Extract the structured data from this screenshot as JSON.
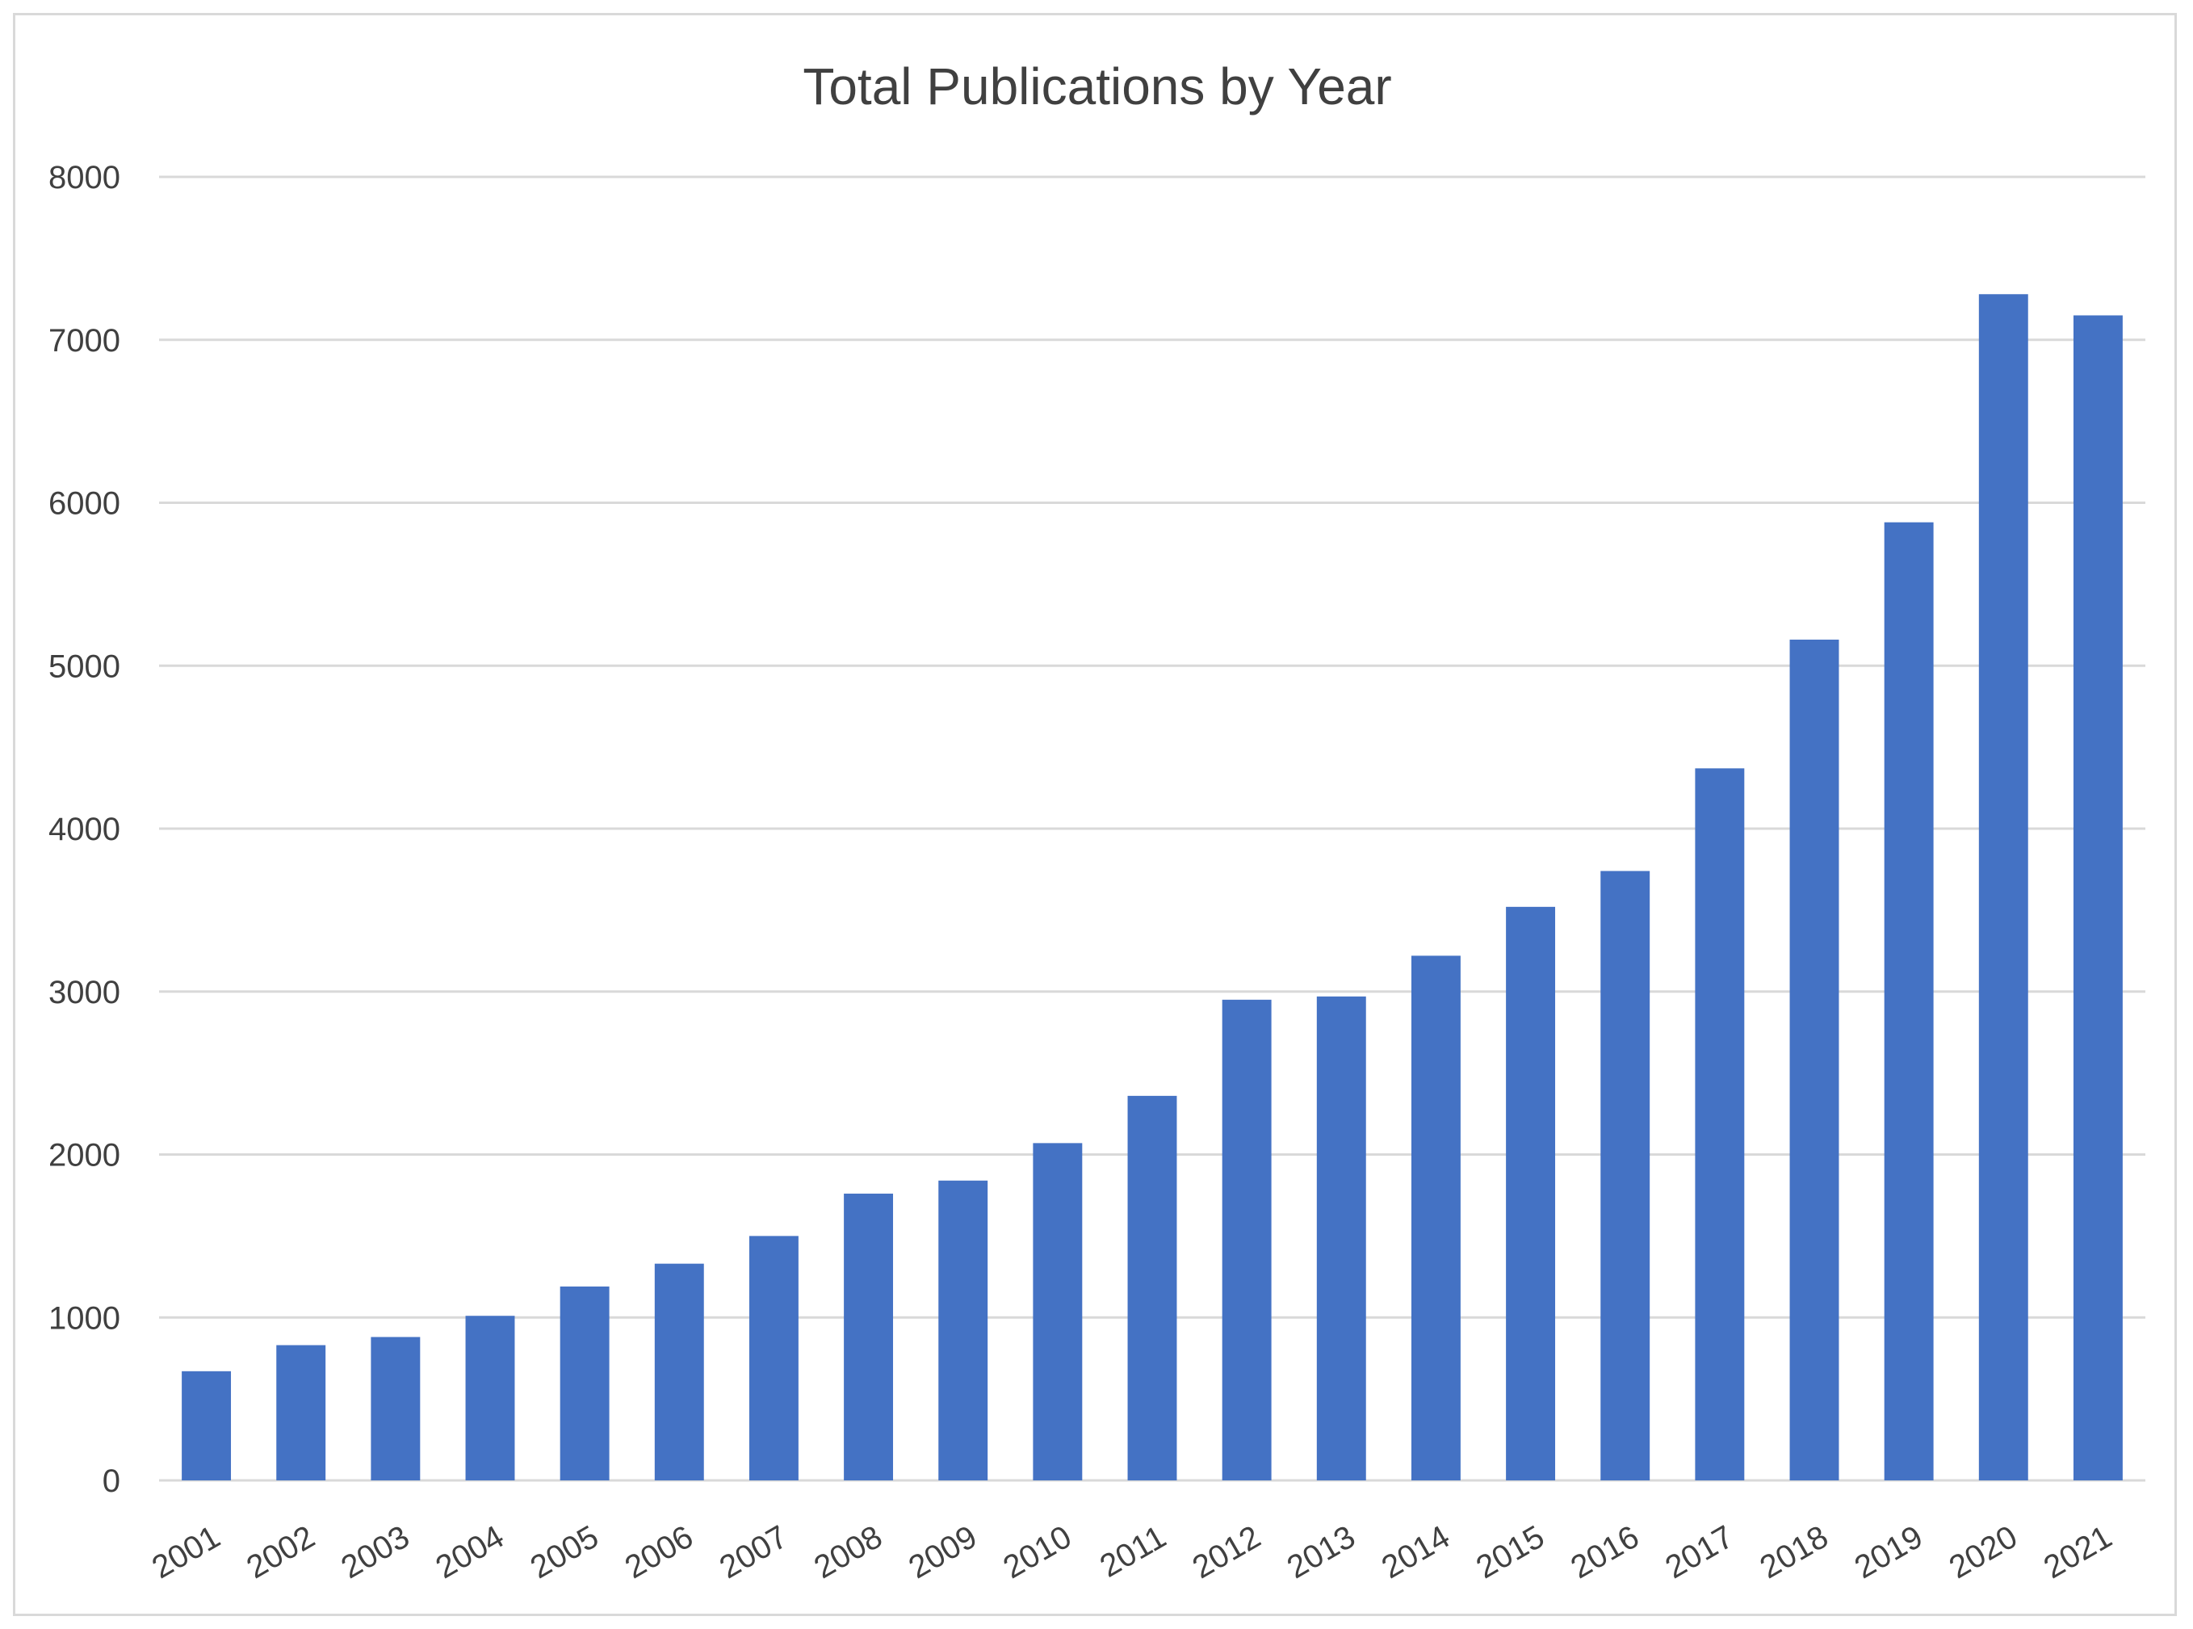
{
  "chart_data": {
    "type": "bar",
    "title": "Total Publications by Year",
    "xlabel": "",
    "ylabel": "",
    "categories": [
      "2001",
      "2002",
      "2003",
      "2004",
      "2005",
      "2006",
      "2007",
      "2008",
      "2009",
      "2010",
      "2011",
      "2012",
      "2013",
      "2014",
      "2015",
      "2016",
      "2017",
      "2018",
      "2019",
      "2020",
      "2021"
    ],
    "values": [
      670,
      830,
      880,
      1010,
      1190,
      1330,
      1500,
      1760,
      1840,
      2070,
      2360,
      2950,
      2970,
      3220,
      3520,
      3740,
      4370,
      5160,
      5880,
      7280,
      7150
    ],
    "ylim": [
      0,
      8000
    ],
    "yticks": [
      0,
      1000,
      2000,
      3000,
      4000,
      5000,
      6000,
      7000,
      8000
    ],
    "ytick_labels": [
      "0",
      "1000",
      "2000",
      "3000",
      "4000",
      "5000",
      "6000",
      "7000",
      "8000"
    ],
    "grid": true,
    "legend": "none",
    "colors": {
      "bar": "#4472C4",
      "grid": "#d9d9d9",
      "text": "#404040"
    }
  }
}
